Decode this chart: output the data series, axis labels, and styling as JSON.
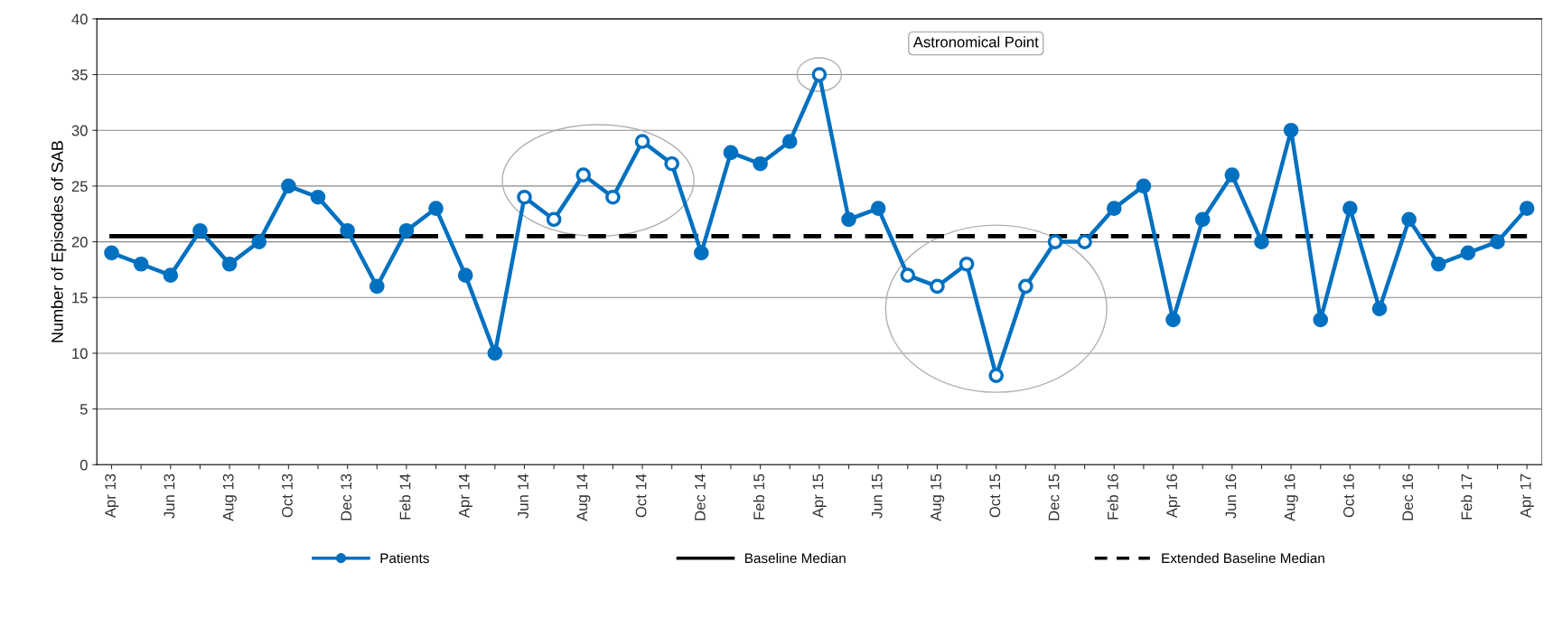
{
  "chart_data": {
    "type": "line",
    "ylabel": "Number of Episodes of SAB",
    "categories": [
      "Apr 13",
      null,
      "Jun 13",
      null,
      "Aug 13",
      null,
      "Oct 13",
      null,
      "Dec 13",
      null,
      "Feb 14",
      null,
      "Apr 14",
      null,
      "Jun 14",
      null,
      "Aug 14",
      null,
      "Oct 14",
      null,
      "Dec 14",
      null,
      "Feb 15",
      null,
      "Apr 15",
      null,
      "Jun 15",
      null,
      "Aug 15",
      null,
      "Oct 15",
      null,
      "Dec 15",
      null,
      "Feb 16",
      null,
      "Apr 16",
      null,
      "Jun 16",
      null,
      "Aug 16",
      null,
      "Oct 16",
      null,
      "Dec 16",
      null,
      "Feb 17",
      null,
      "Apr 17"
    ],
    "series": [
      {
        "name": "Patients",
        "marker": "circle",
        "line_style": "solid",
        "color": "#0070c0",
        "values": [
          19,
          18,
          17,
          21,
          18,
          20,
          25,
          24,
          21,
          16,
          21,
          23,
          17,
          10,
          24,
          22,
          26,
          24,
          29,
          27,
          19,
          28,
          27,
          29,
          35,
          22,
          23,
          17,
          16,
          18,
          8,
          16,
          20,
          20,
          23,
          25,
          13,
          22,
          26,
          20,
          30,
          13,
          23,
          14,
          22,
          18,
          19,
          20,
          23
        ],
        "colors": [
          "#0070c0",
          "#0070c0",
          "#0070c0",
          "#0070c0",
          "#0070c0",
          "#0070c0",
          "#0070c0",
          "#0070c0",
          "#0070c0",
          "#0070c0",
          "#0070c0",
          "#0070c0",
          "#0070c0",
          "#0070c0",
          "#ffffff",
          "#ffffff",
          "#ffffff",
          "#ffffff",
          "#ffffff",
          "#ffffff",
          "#0070c0",
          "#0070c0",
          "#0070c0",
          "#0070c0",
          "#ffffff",
          "#0070c0",
          "#0070c0",
          "#ffffff",
          "#ffffff",
          "#ffffff",
          "#ffffff",
          "#ffffff",
          "#ffffff",
          "#ffffff",
          "#0070c0",
          "#0070c0",
          "#0070c0",
          "#0070c0",
          "#0070c0",
          "#0070c0",
          "#0070c0",
          "#0070c0",
          "#0070c0",
          "#0070c0",
          "#0070c0",
          "#0070c0",
          "#0070c0",
          "#0070c0",
          "#0070c0"
        ]
      },
      {
        "name": "Baseline Median",
        "marker": "none",
        "line_style": "solid",
        "color": "#000000",
        "values": [
          20.5,
          20.5,
          20.5,
          20.5,
          20.5,
          20.5,
          20.5,
          20.5,
          20.5,
          20.5,
          20.5,
          20.5,
          null,
          null,
          null,
          null,
          null,
          null,
          null,
          null,
          null,
          null,
          null,
          null,
          null,
          null,
          null,
          null,
          null,
          null,
          null,
          null,
          null,
          null,
          null,
          null,
          null,
          null,
          null,
          null,
          null,
          null,
          null,
          null,
          null,
          null,
          null,
          null,
          null
        ]
      },
      {
        "name": "Extended Baseline Median",
        "marker": "none",
        "line_style": "dashed",
        "color": "#000000",
        "values": [
          null,
          null,
          null,
          null,
          null,
          null,
          null,
          null,
          null,
          null,
          null,
          null,
          20.5,
          20.5,
          20.5,
          20.5,
          20.5,
          20.5,
          20.5,
          20.5,
          20.5,
          20.5,
          20.5,
          20.5,
          20.5,
          20.5,
          20.5,
          20.5,
          20.5,
          20.5,
          20.5,
          20.5,
          20.5,
          20.5,
          20.5,
          20.5,
          20.5,
          20.5,
          20.5,
          20.5,
          20.5,
          20.5,
          20.5,
          20.5,
          20.5,
          20.5,
          20.5,
          20.5,
          20.5
        ]
      }
    ],
    "annotations": [
      "Astronomical Point"
    ],
    "ylim": [
      0,
      40
    ],
    "yticks": [
      0,
      5,
      10,
      15,
      20,
      25,
      30,
      35,
      40
    ],
    "grid": "y",
    "legend": "bottom"
  }
}
